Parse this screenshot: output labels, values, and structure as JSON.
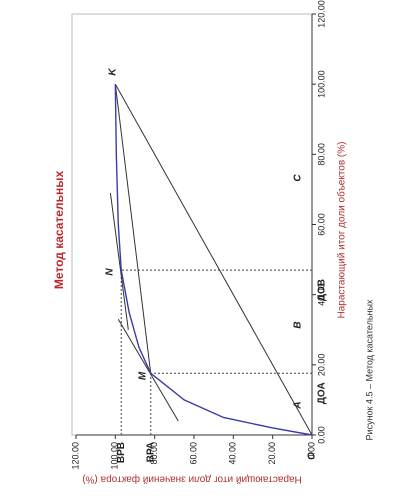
{
  "chart_data": {
    "type": "line",
    "title": "Метод касательных",
    "xlabel": "Нарастающий итог доли объектов (%)",
    "ylabel": "Нарастающий итог доли значений фактора (%)",
    "caption": "Рисунок 4.5 – Метод касательных",
    "x": [
      0,
      2,
      5,
      10,
      17.6,
      25,
      35,
      47,
      60,
      80,
      100
    ],
    "series": [
      {
        "color": "#3b3ba8",
        "values": [
          0,
          20,
          45,
          65,
          82,
          88,
          93,
          97,
          98.5,
          99.5,
          100
        ]
      }
    ],
    "lines": [
      {
        "x": [
          0,
          100
        ],
        "y": [
          0,
          100
        ]
      },
      {
        "x": [
          17.6,
          100
        ],
        "y": [
          82,
          100
        ]
      },
      {
        "x": [
          4,
          33
        ],
        "y": [
          68,
          98.5
        ]
      },
      {
        "x": [
          30,
          69
        ],
        "y": [
          93.4,
          102.5
        ]
      }
    ],
    "reference_lines": [
      {
        "x": 17.6,
        "y": 82,
        "x_label": "ДОА",
        "y_label": "ВРА"
      },
      {
        "x": 47,
        "y": 97,
        "x_label": "ДОВ",
        "y_label": "ВРВ"
      }
    ],
    "annotations": [
      "A",
      "B",
      "C",
      "K",
      "M",
      "N",
      "O"
    ],
    "xlim": [
      0,
      120
    ],
    "ylim": [
      0,
      120
    ],
    "xticks": [
      {
        "value": 0,
        "label": "0.00"
      },
      {
        "value": 20,
        "label": "20.00"
      },
      {
        "value": 40,
        "label": "40.00"
      },
      {
        "value": 60,
        "label": "60.00"
      },
      {
        "value": 80,
        "label": "80.00"
      },
      {
        "value": 100,
        "label": "100.00"
      },
      {
        "value": 120,
        "label": "120.00"
      }
    ],
    "yticks": [
      {
        "value": 0,
        "label": "0.00"
      },
      {
        "value": 20,
        "label": "20.00"
      },
      {
        "value": 40,
        "label": "40.00"
      },
      {
        "value": 60,
        "label": "60.00"
      },
      {
        "value": 80,
        "label": "80.00"
      },
      {
        "value": 100,
        "label": "100.00"
      },
      {
        "value": 120,
        "label": "120.00"
      }
    ]
  }
}
